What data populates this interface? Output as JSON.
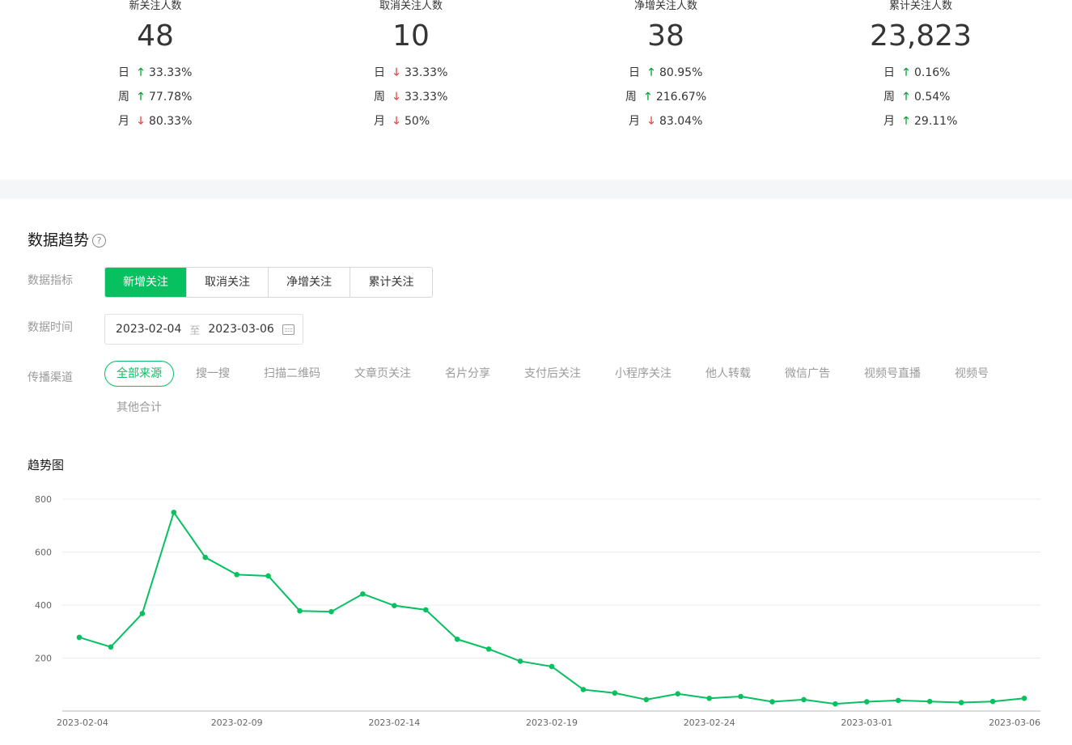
{
  "stats": [
    {
      "label": "新关注人数",
      "value": "48",
      "rows": [
        {
          "period": "日",
          "dir": "up",
          "pct": "33.33%"
        },
        {
          "period": "周",
          "dir": "up",
          "pct": "77.78%"
        },
        {
          "period": "月",
          "dir": "down",
          "pct": "80.33%"
        }
      ]
    },
    {
      "label": "取消关注人数",
      "value": "10",
      "rows": [
        {
          "period": "日",
          "dir": "down",
          "pct": "33.33%"
        },
        {
          "period": "周",
          "dir": "down",
          "pct": "33.33%"
        },
        {
          "period": "月",
          "dir": "down",
          "pct": "50%"
        }
      ]
    },
    {
      "label": "净增关注人数",
      "value": "38",
      "rows": [
        {
          "period": "日",
          "dir": "up",
          "pct": "80.95%"
        },
        {
          "period": "周",
          "dir": "up",
          "pct": "216.67%"
        },
        {
          "period": "月",
          "dir": "down",
          "pct": "83.04%"
        }
      ]
    },
    {
      "label": "累计关注人数",
      "value": "23,823",
      "rows": [
        {
          "period": "日",
          "dir": "up",
          "pct": "0.16%"
        },
        {
          "period": "周",
          "dir": "up",
          "pct": "0.54%"
        },
        {
          "period": "月",
          "dir": "up",
          "pct": "29.11%"
        }
      ]
    }
  ],
  "trend": {
    "title": "数据趋势",
    "help_icon": "?",
    "metric_label": "数据指标",
    "metrics": [
      "新增关注",
      "取消关注",
      "净增关注",
      "累计关注"
    ],
    "time_label": "数据时间",
    "date_start": "2023-02-04",
    "date_sep": "至",
    "date_end": "2023-03-06",
    "channel_label": "传播渠道",
    "channels": [
      "全部来源",
      "搜一搜",
      "扫描二维码",
      "文章页关注",
      "名片分享",
      "支付后关注",
      "小程序关注",
      "他人转载",
      "微信广告",
      "视频号直播",
      "视频号",
      "其他合计"
    ],
    "chart_title": "趋势图"
  },
  "colors": {
    "accent": "#07c160",
    "up": "#07a031",
    "down": "#e64340"
  },
  "chart_data": {
    "type": "line",
    "title": "趋势图",
    "x": [
      "2023-02-04",
      "2023-02-05",
      "2023-02-06",
      "2023-02-07",
      "2023-02-08",
      "2023-02-09",
      "2023-02-10",
      "2023-02-11",
      "2023-02-12",
      "2023-02-13",
      "2023-02-14",
      "2023-02-15",
      "2023-02-16",
      "2023-02-17",
      "2023-02-18",
      "2023-02-19",
      "2023-02-20",
      "2023-02-21",
      "2023-02-22",
      "2023-02-23",
      "2023-02-24",
      "2023-02-25",
      "2023-02-26",
      "2023-02-27",
      "2023-02-28",
      "2023-03-01",
      "2023-03-02",
      "2023-03-03",
      "2023-03-04",
      "2023-03-05",
      "2023-03-06"
    ],
    "x_tick_labels": [
      "2023-02-04",
      "2023-02-09",
      "2023-02-14",
      "2023-02-19",
      "2023-02-24",
      "2023-03-01",
      "2023-03-06"
    ],
    "series": [
      {
        "values": [
          278,
          242,
          368,
          750,
          580,
          515,
          510,
          378,
          375,
          442,
          398,
          382,
          271,
          234,
          188,
          168,
          81,
          68,
          43,
          65,
          48,
          55,
          35,
          43,
          27,
          35,
          40,
          36,
          32,
          36,
          48
        ]
      }
    ],
    "y_ticks": [
      200,
      400,
      600,
      800
    ],
    "ylim": [
      0,
      800
    ],
    "grid": true,
    "legend": "none"
  }
}
